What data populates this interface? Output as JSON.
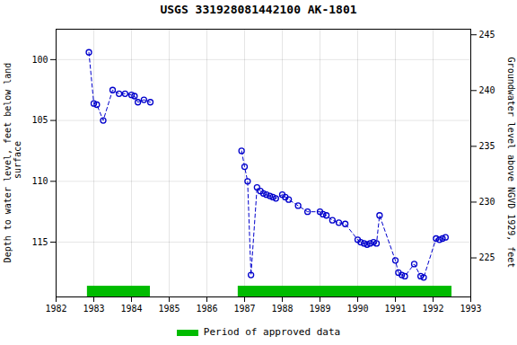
{
  "chart_data": {
    "type": "line",
    "title": "USGS 331928081442100 AK-1801",
    "x": [
      1982.87,
      1983.0,
      1983.08,
      1983.25,
      1983.5,
      1983.67,
      1983.83,
      1984.0,
      1984.08,
      1984.17,
      1984.33,
      1984.5,
      null,
      1986.92,
      1987.0,
      1987.08,
      1987.17,
      1987.33,
      1987.42,
      1987.5,
      1987.58,
      1987.67,
      1987.75,
      1987.83,
      1988.0,
      1988.08,
      1988.17,
      1988.42,
      1988.67,
      1989.0,
      1989.08,
      1989.17,
      1989.33,
      1989.5,
      1989.67,
      1990.0,
      1990.08,
      1990.17,
      1990.25,
      1990.33,
      1990.42,
      1990.5,
      1990.58,
      1991.0,
      1991.08,
      1991.17,
      1991.25,
      1991.5,
      1991.67,
      1991.75,
      1992.08,
      1992.17,
      1992.25,
      1992.33
    ],
    "series": [
      {
        "color": "#0000cc",
        "line_style": "dashed",
        "marker": "circle",
        "values": [
          99.4,
          103.6,
          103.7,
          105.0,
          102.5,
          102.8,
          102.8,
          102.9,
          103.0,
          103.5,
          103.3,
          103.5,
          null,
          107.5,
          108.8,
          110.0,
          117.7,
          110.5,
          110.8,
          111.0,
          111.1,
          111.2,
          111.3,
          111.4,
          111.1,
          111.3,
          111.5,
          112.0,
          112.5,
          112.5,
          112.7,
          112.8,
          113.2,
          113.4,
          113.5,
          114.8,
          115.0,
          115.1,
          115.2,
          115.1,
          115.0,
          115.1,
          112.8,
          116.5,
          117.5,
          117.7,
          117.8,
          116.8,
          117.8,
          117.9,
          114.7,
          114.8,
          114.7,
          114.6
        ]
      }
    ],
    "xlim": [
      1982,
      1993
    ],
    "xticks": [
      1982,
      1983,
      1984,
      1985,
      1986,
      1987,
      1988,
      1989,
      1990,
      1991,
      1992,
      1993
    ],
    "ylim": [
      119.5,
      97.5
    ],
    "yticks": [
      100,
      105,
      110,
      115
    ],
    "ylabel": "Depth to water level, feet below land\n surface",
    "y2lim": [
      221.5,
      245.5
    ],
    "y2ticks": [
      225,
      230,
      235,
      240,
      245
    ],
    "y2label": "Groundwater level above NGVD 1929, feet",
    "grid": true,
    "legend": "bottom",
    "periods": {
      "name": "Period of approved data",
      "color": "#00bb00",
      "ranges": [
        [
          1982.83,
          1984.5
        ],
        [
          1986.83,
          1992.5
        ]
      ]
    }
  }
}
